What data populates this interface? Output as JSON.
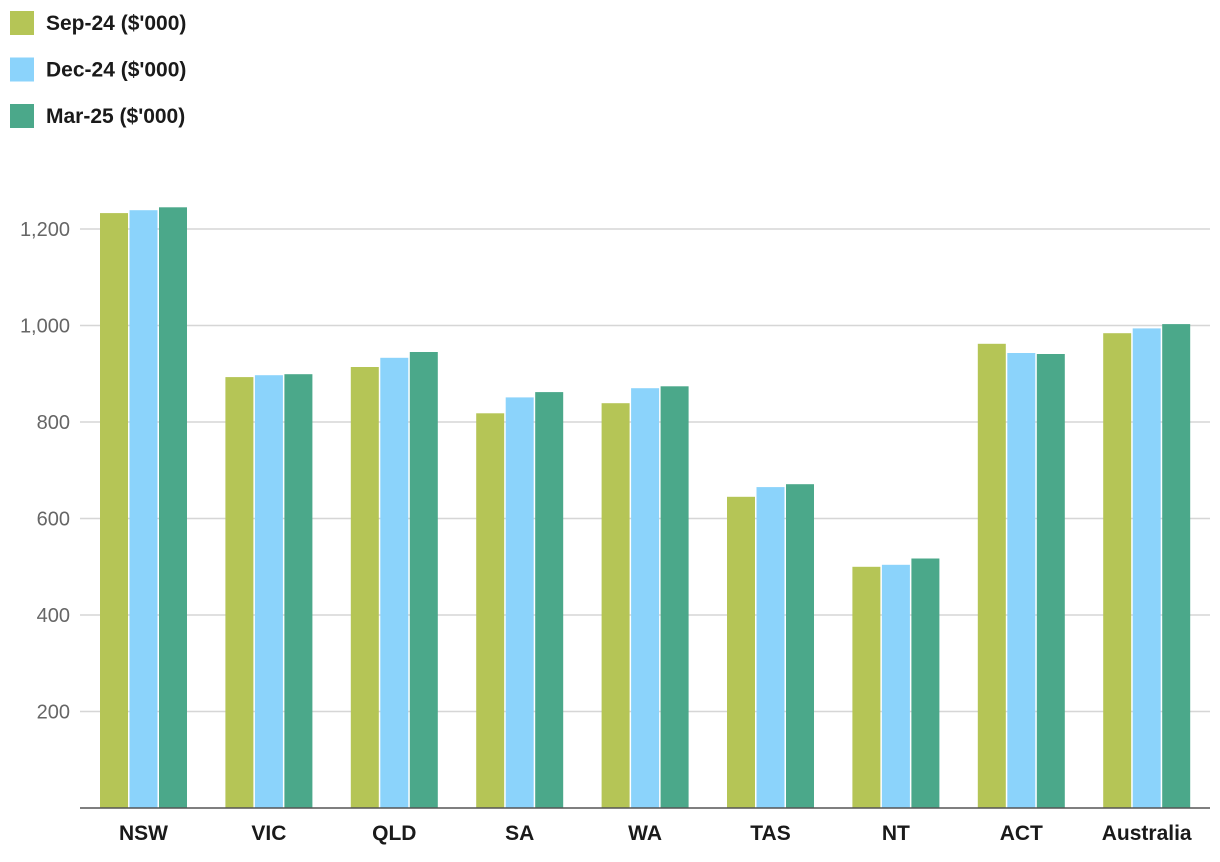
{
  "chart_data": {
    "type": "bar",
    "categories": [
      "NSW",
      "VIC",
      "QLD",
      "SA",
      "WA",
      "TAS",
      "NT",
      "ACT",
      "Australia"
    ],
    "series": [
      {
        "name": "Sep-24 ($'000)",
        "color": "#b5c556",
        "values": [
          1233,
          893,
          914,
          818,
          839,
          645,
          500,
          962,
          984
        ]
      },
      {
        "name": "Dec-24 ($'000)",
        "color": "#8bd3fb",
        "values": [
          1239,
          897,
          933,
          851,
          870,
          665,
          504,
          943,
          994
        ]
      },
      {
        "name": "Mar-25 ($'000)",
        "color": "#4ba88a",
        "values": [
          1245,
          899,
          945,
          862,
          874,
          671,
          517,
          941,
          1003
        ]
      }
    ],
    "y_ticks": [
      "200",
      "400",
      "600",
      "800",
      "1,000",
      "1,200"
    ],
    "ylim": [
      0,
      1200
    ],
    "grid": true,
    "legend_position": "top-left",
    "title": "",
    "xlabel": "",
    "ylabel": ""
  }
}
